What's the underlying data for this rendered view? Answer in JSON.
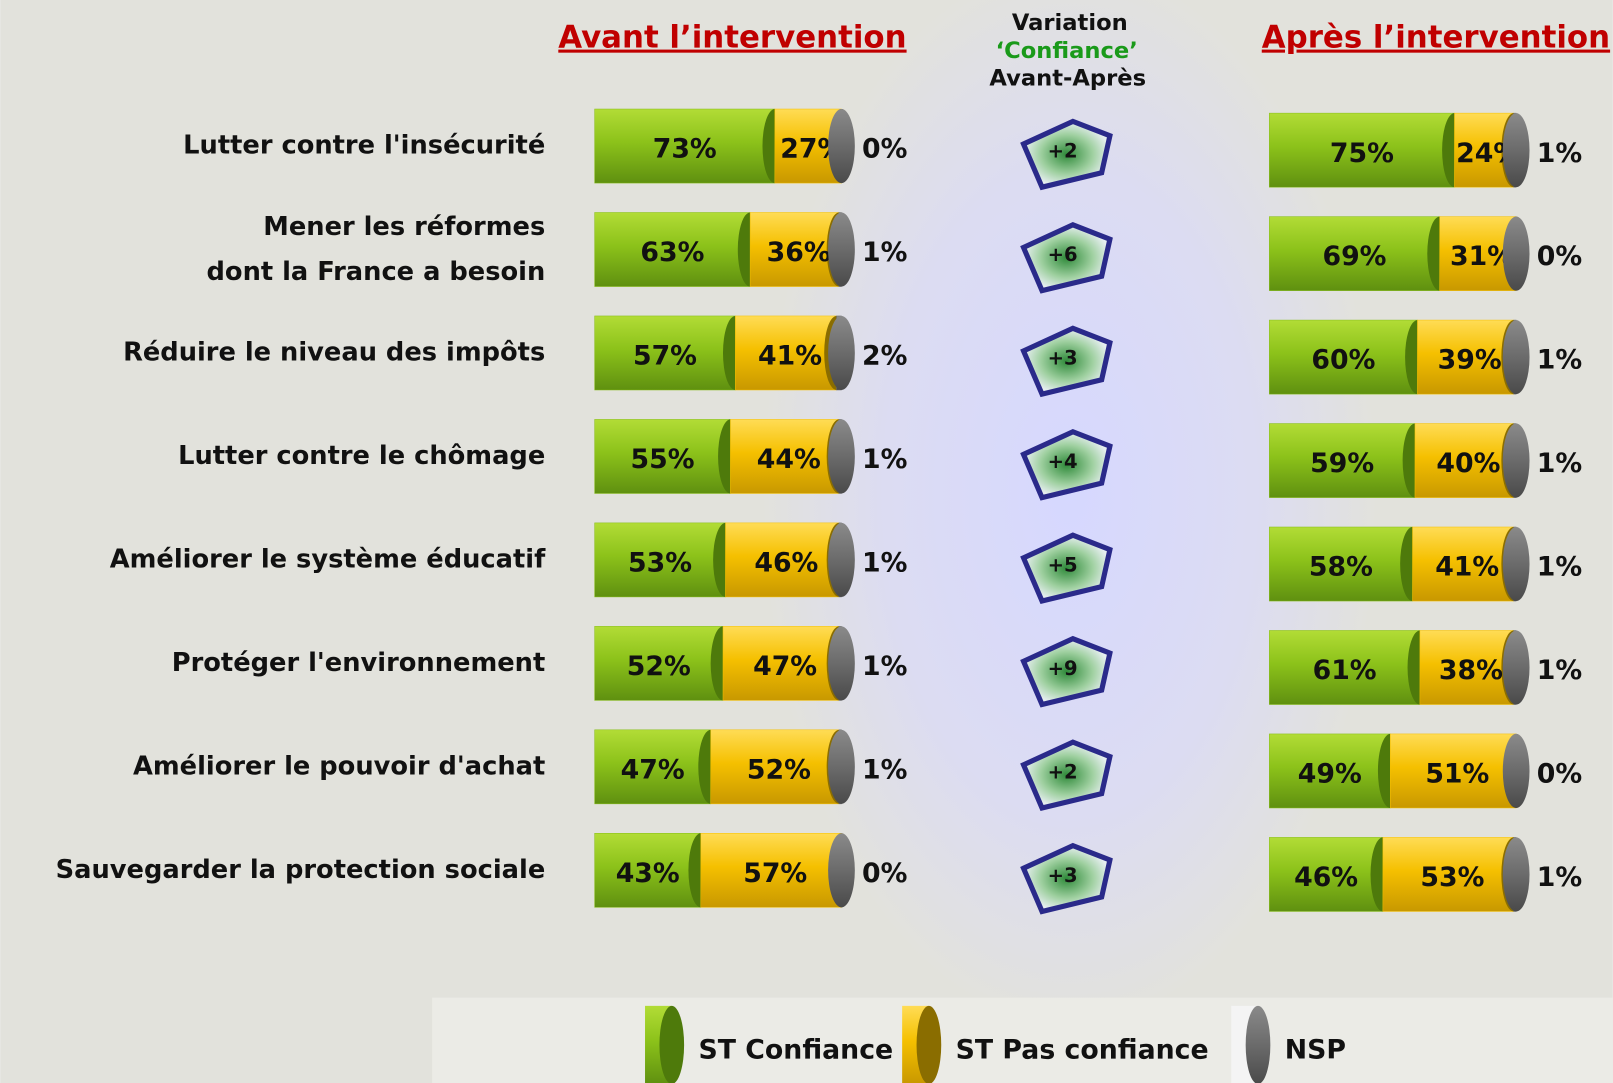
{
  "chart_data": [
    {
      "type": "stacked-bar",
      "title": "Avant l’intervention",
      "categories": [
        "Lutter contre l'insécurité",
        "Mener les réformes\ndont la France a besoin",
        "Réduire le niveau des impôts",
        "Lutter contre le chômage",
        "Améliorer le système éducatif",
        "Protéger l'environnement",
        "Améliorer le pouvoir d'achat",
        "Sauvegarder la protection sociale"
      ],
      "series": [
        {
          "name": "ST Confiance",
          "color": "#86bd16",
          "values": [
            73,
            63,
            57,
            55,
            53,
            52,
            47,
            43
          ],
          "value_labels": [
            "73%",
            "63%",
            "57%",
            "55%",
            "53%",
            "52%",
            "47%",
            "43%"
          ]
        },
        {
          "name": "ST Pas confiance",
          "color": "#f5c000",
          "values": [
            27,
            36,
            41,
            44,
            46,
            47,
            52,
            57
          ],
          "value_labels": [
            "27%",
            "36%",
            "41%",
            "44%",
            "46%",
            "47%",
            "52%",
            "57%"
          ]
        },
        {
          "name": "NSP",
          "color": "#6b6b6b",
          "values": [
            0,
            1,
            2,
            1,
            1,
            1,
            1,
            0
          ],
          "value_labels": [
            "0%",
            "1%",
            "2%",
            "1%",
            "1%",
            "1%",
            "1%",
            "0%"
          ]
        }
      ]
    },
    {
      "type": "stacked-bar",
      "title": "Après l’intervention",
      "series": [
        {
          "name": "ST Confiance",
          "color": "#86bd16",
          "values": [
            75,
            69,
            60,
            59,
            58,
            61,
            49,
            46
          ],
          "value_labels": [
            "75%",
            "69%",
            "60%",
            "59%",
            "58%",
            "61%",
            "49%",
            "46%"
          ]
        },
        {
          "name": "ST Pas confiance",
          "color": "#f5c000",
          "values": [
            24,
            31,
            39,
            40,
            41,
            38,
            51,
            53
          ],
          "value_labels": [
            "24%",
            "31%",
            "39%",
            "40%",
            "41%",
            "38%",
            "51%",
            "53%"
          ]
        },
        {
          "name": "NSP",
          "color": "#6b6b6b",
          "values": [
            1,
            0,
            1,
            1,
            1,
            1,
            0,
            1
          ],
          "value_labels": [
            "1%",
            "0%",
            "1%",
            "1%",
            "1%",
            "1%",
            "0%",
            "1%"
          ]
        }
      ]
    },
    {
      "type": "badge",
      "title": [
        "Variation",
        "‘Confiance’",
        "Avant-Après"
      ],
      "values": [
        2,
        6,
        3,
        4,
        5,
        9,
        2,
        3
      ],
      "value_labels": [
        "+2",
        "+6",
        "+3",
        "+4",
        "+5",
        "+9",
        "+2",
        "+3"
      ]
    }
  ]
}
